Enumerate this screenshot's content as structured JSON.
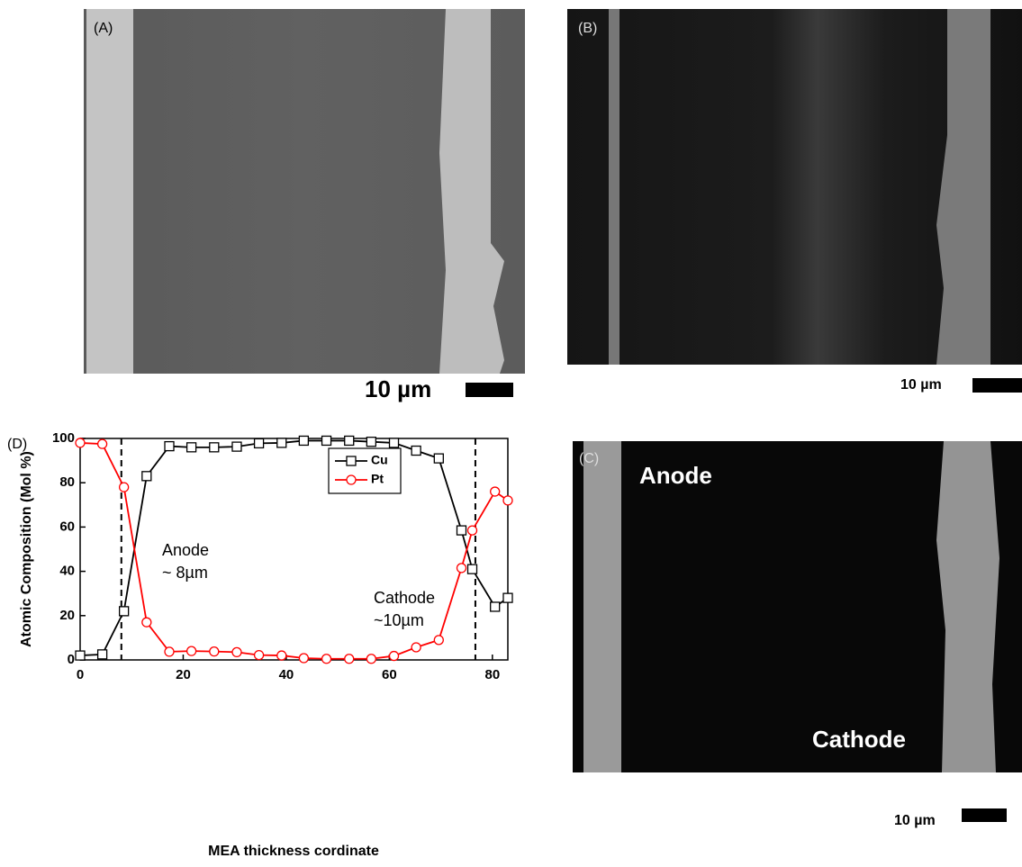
{
  "panels": [
    {
      "label": "(A)",
      "scale": "10 µm"
    },
    {
      "label": "(B)",
      "scale": "10 µm"
    },
    {
      "label": "(C)",
      "scale": "10 µm",
      "anode": "Anode",
      "cathode": "Cathode"
    }
  ],
  "chart_data": {
    "type": "line",
    "panel_label": "(D)",
    "x_label": "MEA thickness cordinate",
    "y_label": "Atomic Composition (Mol %)",
    "x": [
      0,
      4.3,
      8.5,
      12.9,
      17.3,
      21.6,
      26,
      30.4,
      34.7,
      39.1,
      43.4,
      47.8,
      52.2,
      56.5,
      60.9,
      65.2,
      69.6,
      74,
      76.1,
      80.5,
      83
    ],
    "series": [
      {
        "name": "Cu",
        "color": "#000000",
        "marker": "square",
        "values": [
          2,
          2.5,
          22,
          83,
          96.5,
          96,
          96,
          96.3,
          97.8,
          98,
          99,
          99,
          99,
          98.5,
          98,
          94.5,
          91,
          58.5,
          41,
          24,
          28
        ]
      },
      {
        "name": "Pt",
        "color": "#ff0000",
        "marker": "circle",
        "values": [
          98,
          97.5,
          78,
          17,
          3.7,
          4,
          3.8,
          3.5,
          2.2,
          2,
          0.8,
          0.5,
          0.5,
          0.5,
          1.8,
          5.7,
          9,
          41.5,
          58.5,
          76,
          72
        ]
      }
    ],
    "vlines": [
      8,
      76.7
    ],
    "annotations": [
      "Anode",
      "~ 8µm",
      "Cathode",
      "~10µm"
    ],
    "xlim": [
      0,
      83
    ],
    "xticks": [
      0,
      20,
      40,
      60,
      80
    ],
    "ylim": [
      0,
      100
    ],
    "yticks": [
      0,
      20,
      40,
      60,
      80,
      100
    ]
  }
}
